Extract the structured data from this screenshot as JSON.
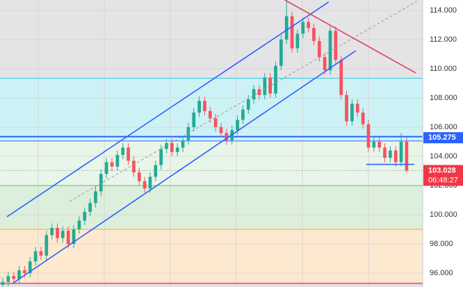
{
  "chart_data": {
    "type": "candlestick",
    "up_color": "#22ab94",
    "down_color": "#f7525f",
    "xlim": [
      -0.51,
      76.94
    ],
    "ylim": [
      95.05,
      114.71
    ],
    "yticks": [
      {
        "value": 96,
        "label": "96.000"
      },
      {
        "value": 98,
        "label": "98.000"
      },
      {
        "value": 100,
        "label": "100.000"
      },
      {
        "value": 102,
        "label": "102.000"
      },
      {
        "value": 104,
        "label": "104.000"
      },
      {
        "value": 106,
        "label": "106.000"
      },
      {
        "value": 108,
        "label": "108.000"
      },
      {
        "value": 110,
        "label": "110.000"
      },
      {
        "value": 112,
        "label": "112.000"
      },
      {
        "value": 114,
        "label": "114.000"
      }
    ],
    "open": [
      95.2,
      95.4,
      95.8,
      95.6,
      96.2,
      96.0,
      96.8,
      97.5,
      97.2,
      98.6,
      99.1,
      98.4,
      98.9,
      98.0,
      99.0,
      99.6,
      100.2,
      100.8,
      101.6,
      102.8,
      103.6,
      103.3,
      104.1,
      104.6,
      103.7,
      102.9,
      102.3,
      101.8,
      102.6,
      103.4,
      104.5,
      104.9,
      104.3,
      104.6,
      105.1,
      106.0,
      107.0,
      107.8,
      107.1,
      106.6,
      106.0,
      105.6,
      105.1,
      105.8,
      106.5,
      107.2,
      107.9,
      108.6,
      108.2,
      109.4,
      108.3,
      110.2,
      112.0,
      113.6,
      111.4,
      112.4,
      113.2,
      112.8,
      111.9,
      110.8,
      109.9,
      112.6,
      110.6,
      108.2,
      106.4,
      107.6,
      107.0,
      106.2,
      104.6,
      105.0,
      104.6,
      103.9,
      104.4,
      103.6,
      105.0
    ],
    "high": [
      95.7,
      96.1,
      96.1,
      96.5,
      96.5,
      97.1,
      97.8,
      97.8,
      98.9,
      99.4,
      99.4,
      99.2,
      99.2,
      99.3,
      99.9,
      100.5,
      101.1,
      101.9,
      103.1,
      103.9,
      103.9,
      104.4,
      104.9,
      104.9,
      104.0,
      103.2,
      102.6,
      102.9,
      103.7,
      104.8,
      105.2,
      105.2,
      104.9,
      105.4,
      106.3,
      107.3,
      108.1,
      108.1,
      107.4,
      106.9,
      106.3,
      105.9,
      106.1,
      106.8,
      107.5,
      108.2,
      108.9,
      108.9,
      109.7,
      109.7,
      110.5,
      112.3,
      114.7,
      113.9,
      112.7,
      113.5,
      113.5,
      113.1,
      112.2,
      111.1,
      112.9,
      112.9,
      110.9,
      108.5,
      107.9,
      107.9,
      107.3,
      106.5,
      105.3,
      105.3,
      104.9,
      104.7,
      104.7,
      105.6,
      105.3
    ],
    "low": [
      94.9,
      95.1,
      95.3,
      95.3,
      95.7,
      95.7,
      96.5,
      96.9,
      96.9,
      98.3,
      98.1,
      98.1,
      97.7,
      97.7,
      98.7,
      99.3,
      99.9,
      100.5,
      101.3,
      102.5,
      103.0,
      103.0,
      103.8,
      103.4,
      102.6,
      102.0,
      101.5,
      101.5,
      102.3,
      103.1,
      104.2,
      104.0,
      104.0,
      104.3,
      104.8,
      105.7,
      106.7,
      106.8,
      106.3,
      105.7,
      105.3,
      104.8,
      104.8,
      105.5,
      106.2,
      106.9,
      107.6,
      107.9,
      107.9,
      108.0,
      108.0,
      109.9,
      111.7,
      111.1,
      111.1,
      112.1,
      112.5,
      111.6,
      110.5,
      109.6,
      109.6,
      110.3,
      107.9,
      106.1,
      106.1,
      106.7,
      105.9,
      104.3,
      104.3,
      104.3,
      103.6,
      103.6,
      103.3,
      103.3,
      102.9
    ],
    "close": [
      95.4,
      95.8,
      95.6,
      96.2,
      96.0,
      96.8,
      97.5,
      97.2,
      98.6,
      99.1,
      98.4,
      98.9,
      98.0,
      99.0,
      99.6,
      100.2,
      100.8,
      101.6,
      102.8,
      103.6,
      103.3,
      104.1,
      104.6,
      103.7,
      102.9,
      102.3,
      101.8,
      102.6,
      103.4,
      104.5,
      104.9,
      104.3,
      104.6,
      105.1,
      106.0,
      107.0,
      107.8,
      107.1,
      106.6,
      106.0,
      105.6,
      105.1,
      105.8,
      106.5,
      107.2,
      107.9,
      108.6,
      108.2,
      109.4,
      108.3,
      110.2,
      112.0,
      113.6,
      111.4,
      112.4,
      113.2,
      112.8,
      111.9,
      110.8,
      109.9,
      112.6,
      110.6,
      108.2,
      106.4,
      107.6,
      107.0,
      106.2,
      104.6,
      105.0,
      104.6,
      103.9,
      104.4,
      103.6,
      105.0,
      103.028
    ],
    "zones": [
      {
        "from": 109.35,
        "to": 105.05,
        "color": "#cdf2f5"
      },
      {
        "from": 105.05,
        "to": 102.0,
        "color": "#e8f5e9"
      },
      {
        "from": 102.0,
        "to": 99.0,
        "color": "#dcefdc"
      },
      {
        "from": 99.0,
        "to": 95.3,
        "color": "#fde9cf"
      }
    ],
    "levels": [
      {
        "value": 109.35,
        "color": "#26c6da",
        "width": 1
      },
      {
        "value": 105.35,
        "color": "#2962ff",
        "width": 2
      },
      {
        "value": 105.05,
        "color": "#2962ff",
        "width": 1
      },
      {
        "value": 102.0,
        "color": "#66bb6a",
        "width": 1
      },
      {
        "value": 99.0,
        "color": "#ffa726",
        "width": 1
      },
      {
        "value": 95.3,
        "color": "#f06292",
        "width": 2
      }
    ],
    "trendlines": [
      {
        "x": [
          0.76,
          59.7
        ],
        "y": [
          99.86,
          114.57
        ],
        "color": "#2962ff",
        "dash": false
      },
      {
        "x": [
          1.78,
          64.7
        ],
        "y": [
          95.29,
          111.24
        ],
        "color": "#2962ff",
        "dash": false
      },
      {
        "x": [
          12.2,
          75.9
        ],
        "y": [
          100.9,
          114.62
        ],
        "color": "#9e9e9e",
        "dash": true
      },
      {
        "x": [
          51.7,
          75.7
        ],
        "y": [
          114.71,
          109.71
        ],
        "color": "#e0405a",
        "dash": false
      },
      {
        "x": [
          66.6,
          75.4
        ],
        "y": [
          103.45,
          103.45
        ],
        "color": "#2962ff",
        "dash": false
      }
    ],
    "price_labels": [
      {
        "value": 105.275,
        "label": "105.275",
        "color": "#2962ff"
      },
      {
        "value": 103.028,
        "label": "103.028",
        "color": "#f23645",
        "sub": "06:48:27"
      }
    ]
  }
}
